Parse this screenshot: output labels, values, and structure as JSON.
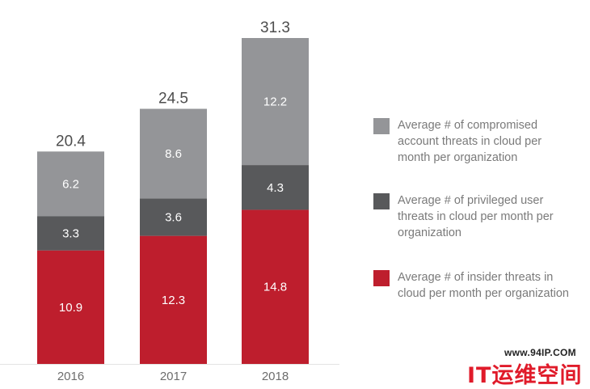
{
  "chart_data": {
    "type": "bar",
    "stacked": true,
    "categories": [
      "2016",
      "2017",
      "2018"
    ],
    "totals": [
      20.4,
      24.5,
      31.3
    ],
    "series": [
      {
        "key": "insider",
        "name": "Average # of insider threats in cloud per month per organization",
        "values": [
          10.9,
          12.3,
          14.8
        ],
        "color": "#be1e2d"
      },
      {
        "key": "privileged",
        "name": "Average # of privileged user threats in cloud per month per organization",
        "values": [
          3.3,
          3.6,
          4.3
        ],
        "color": "#58595b"
      },
      {
        "key": "compromised",
        "name": "Average # of compromised account threats in cloud per month per organization",
        "values": [
          6.2,
          8.6,
          12.2
        ],
        "color": "#949598"
      }
    ],
    "ylim": [
      0,
      31.3
    ],
    "grid": false,
    "legend_position": "right"
  },
  "legend": [
    {
      "label": "Average # of compromised account threats in cloud per month per organization",
      "color": "#949598"
    },
    {
      "label": "Average # of privileged user threats in cloud per month per organization",
      "color": "#58595b"
    },
    {
      "label": "Average # of insider threats in cloud per month per organization",
      "color": "#be1e2d"
    }
  ],
  "watermark": {
    "url": "www.94IP.COM",
    "brand": "IT运维空间"
  }
}
